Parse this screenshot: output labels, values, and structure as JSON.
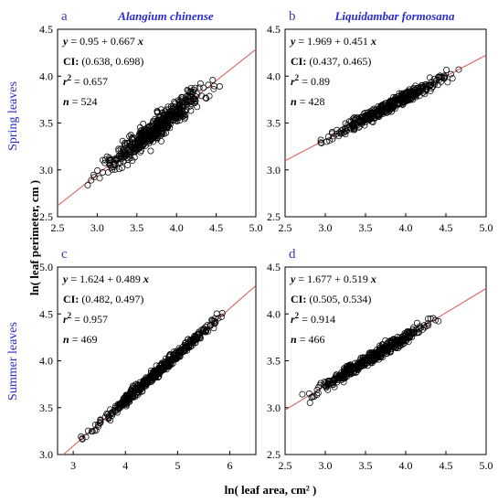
{
  "figure": {
    "row_labels": [
      "Spring leaves",
      "Summer leaves"
    ],
    "xlabel": "ln( leaf area,  cm² )",
    "ylabel": "ln( leaf perimeter,  cm )"
  },
  "chart_data": [
    {
      "type": "scatter",
      "letter": "a",
      "title": "Alangium chinense",
      "xlim": [
        2.5,
        5.0
      ],
      "ylim": [
        2.5,
        4.5
      ],
      "xticks": [
        "2.5",
        "3.0",
        "3.5",
        "4.0",
        "4.5",
        "5.0"
      ],
      "yticks": [
        "2.5",
        "3.0",
        "3.5",
        "4.0",
        "4.5"
      ],
      "fit": {
        "intercept": 0.95,
        "slope": 0.667
      },
      "annotations": {
        "equation": "= 0.95 + 0.667",
        "ci_label": "CI:",
        "ci": "(0.638, 0.698)",
        "r2_value": "= 0.657",
        "n_value": "524"
      },
      "n": 524,
      "x_range": [
        2.85,
        4.6
      ],
      "y_noise": 0.11
    },
    {
      "type": "scatter",
      "letter": "b",
      "title": "Liquidambar formosana",
      "xlim": [
        2.5,
        5.0
      ],
      "ylim": [
        2.5,
        4.5
      ],
      "xticks": [
        "2.5",
        "3.0",
        "3.5",
        "4.0",
        "4.5",
        "5.0"
      ],
      "yticks": [
        "2.5",
        "3.0",
        "3.5",
        "4.0",
        "4.5"
      ],
      "fit": {
        "intercept": 1.969,
        "slope": 0.451
      },
      "annotations": {
        "equation": "= 1.969 + 0.451",
        "ci_label": "CI:",
        "ci": "(0.437, 0.465)",
        "r2_value": "= 0.89",
        "n_value": "428"
      },
      "n": 428,
      "x_range": [
        2.8,
        4.7
      ],
      "y_noise": 0.05
    },
    {
      "type": "scatter",
      "letter": "c",
      "title": "",
      "xlim": [
        2.7,
        6.5
      ],
      "ylim": [
        3.0,
        5.0
      ],
      "xticks": [
        "3",
        "4",
        "5",
        "6"
      ],
      "xtick_values": [
        3,
        4,
        5,
        6
      ],
      "yticks": [
        "3.0",
        "3.5",
        "4.0",
        "4.5",
        "5.0"
      ],
      "fit": {
        "intercept": 1.624,
        "slope": 0.489
      },
      "annotations": {
        "equation": "= 1.624 + 0.489",
        "ci_label": "CI:",
        "ci": "(0.482, 0.497)",
        "r2_value": "= 0.957",
        "n_value": "469"
      },
      "n": 469,
      "x_range": [
        3.0,
        6.1
      ],
      "y_noise": 0.045
    },
    {
      "type": "scatter",
      "letter": "d",
      "title": "",
      "xlim": [
        2.5,
        5.0
      ],
      "ylim": [
        2.5,
        4.5
      ],
      "xticks": [
        "2.5",
        "3.0",
        "3.5",
        "4.0",
        "4.5",
        "5.0"
      ],
      "yticks": [
        "2.5",
        "3.0",
        "3.5",
        "4.0",
        "4.5"
      ],
      "fit": {
        "intercept": 1.677,
        "slope": 0.519
      },
      "annotations": {
        "equation": "= 1.677 + 0.519",
        "ci_label": "CI:",
        "ci": "(0.505, 0.534)",
        "r2_value": "= 0.914",
        "n_value": "466"
      },
      "n": 466,
      "x_range": [
        2.65,
        4.55
      ],
      "y_noise": 0.05
    }
  ]
}
